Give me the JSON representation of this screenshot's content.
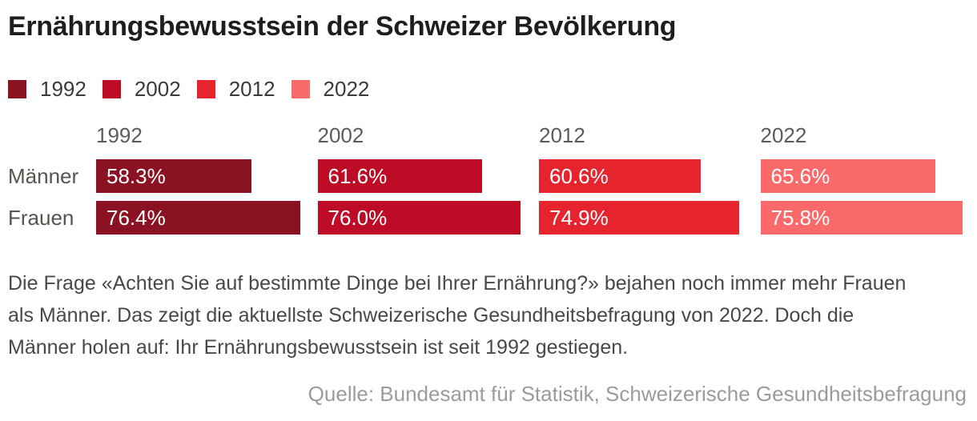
{
  "title": "Ernährungsbewusstsein der Schweizer Bevölkerung",
  "chart_data": {
    "type": "bar",
    "orientation": "horizontal",
    "title": "Ernährungsbewusstsein der Schweizer Bevölkerung",
    "categories": [
      "Männer",
      "Frauen"
    ],
    "series": [
      {
        "name": "1992",
        "color": "#8B1222",
        "values": [
          58.3,
          76.4
        ],
        "labels": [
          "58.3%",
          "76.4%"
        ]
      },
      {
        "name": "2002",
        "color": "#BE0B26",
        "values": [
          61.6,
          76.0
        ],
        "labels": [
          "61.6%",
          "76.0%"
        ]
      },
      {
        "name": "2012",
        "color": "#E6242E",
        "values": [
          60.6,
          74.9
        ],
        "labels": [
          "60.6%",
          "74.9%"
        ]
      },
      {
        "name": "2022",
        "color": "#FB6A6A",
        "values": [
          65.6,
          75.8
        ],
        "labels": [
          "65.6%",
          "75.8%"
        ]
      }
    ],
    "unit": "%",
    "xlim": [
      0,
      77.5
    ],
    "legend_position": "top",
    "grid": false,
    "value_labels_inside_bars": true
  },
  "description_lines": [
    "Die Frage «Achten Sie auf bestimmte Dinge bei Ihrer Ernährung?» bejahen noch immer mehr Frauen",
    "als Männer. Das zeigt die aktuellste Schweizerische Gesundheitsbefragung von 2022. Doch die",
    "Männer holen auf: Ihr Ernährungsbewusstsein ist seit 1992 gestiegen."
  ],
  "source": "Quelle: Bundesamt für Statistik, Schweizerische Gesundheitsbefragung"
}
